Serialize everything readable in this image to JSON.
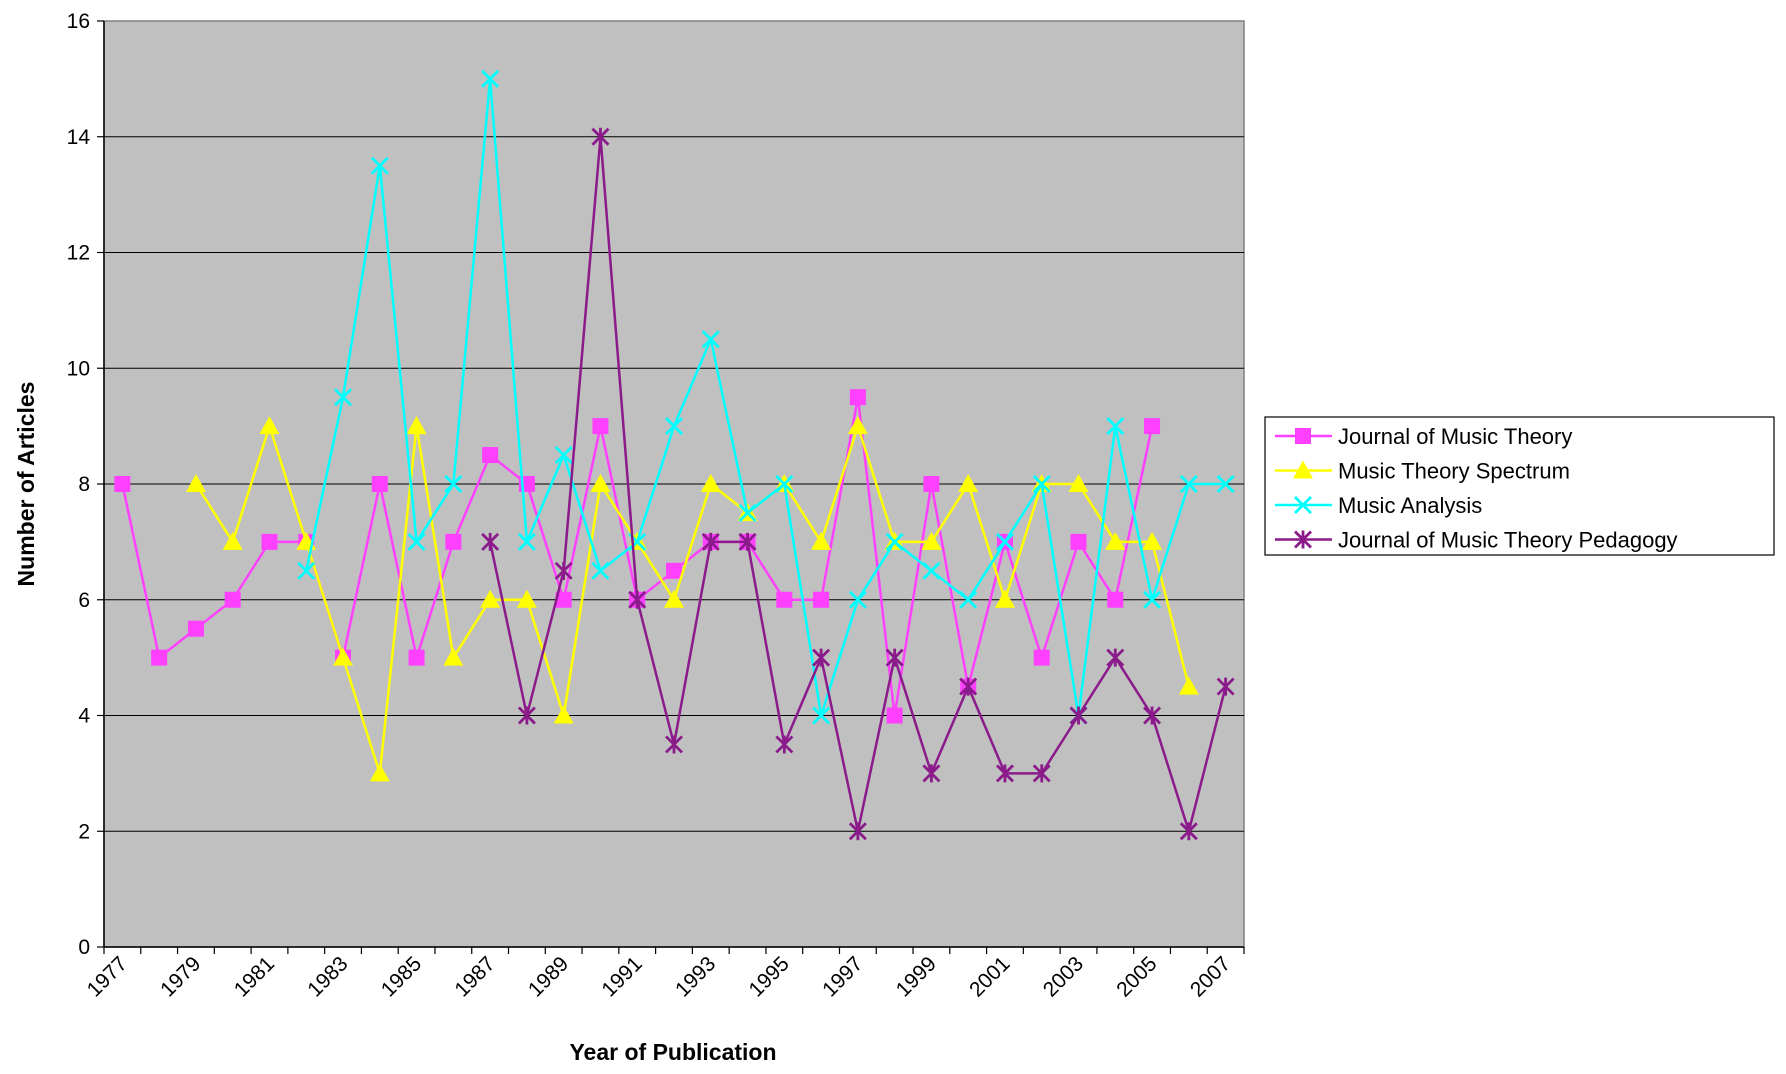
{
  "chart_data": {
    "type": "line",
    "xlabel": "Year of Publication",
    "ylabel": "Number of Articles",
    "ylim": [
      0,
      16
    ],
    "yticks": [
      "0",
      "2",
      "4",
      "6",
      "8",
      "10",
      "12",
      "14",
      "16"
    ],
    "xticks": [
      "1977",
      "1979",
      "1981",
      "1983",
      "1985",
      "1987",
      "1989",
      "1991",
      "1993",
      "1995",
      "1997",
      "1999",
      "2001",
      "2003",
      "2005",
      "2007"
    ],
    "plot_background": "#c0c0c0",
    "grid": "horizontal",
    "legend_position": "right",
    "series": [
      {
        "name": "Journal of Music Theory",
        "color": "#ff40ff",
        "marker": "square",
        "points": [
          [
            1977,
            8
          ],
          [
            1978,
            5
          ],
          [
            1979,
            5.5
          ],
          [
            1980,
            6
          ],
          [
            1981,
            7
          ],
          [
            1982,
            7
          ],
          [
            1983,
            5
          ],
          [
            1984,
            8
          ],
          [
            1985,
            5
          ],
          [
            1986,
            7
          ],
          [
            1987,
            8.5
          ],
          [
            1988,
            8
          ],
          [
            1989,
            6
          ],
          [
            1990,
            9
          ],
          [
            1991,
            6
          ],
          [
            1992,
            6.5
          ],
          [
            1993,
            7
          ],
          [
            1994,
            7
          ],
          [
            1995,
            6
          ],
          [
            1996,
            6
          ],
          [
            1997,
            9.5
          ],
          [
            1998,
            4
          ],
          [
            1999,
            8
          ],
          [
            2000,
            4.5
          ],
          [
            2001,
            7
          ],
          [
            2002,
            5
          ],
          [
            2003,
            7
          ],
          [
            2004,
            6
          ],
          [
            2005,
            9
          ]
        ]
      },
      {
        "name": "Music Theory Spectrum",
        "color": "#ffff00",
        "marker": "triangle",
        "points": [
          [
            1979,
            8
          ],
          [
            1980,
            7
          ],
          [
            1981,
            9
          ],
          [
            1982,
            7
          ],
          [
            1983,
            5
          ],
          [
            1984,
            3
          ],
          [
            1985,
            9
          ],
          [
            1986,
            5
          ],
          [
            1987,
            6
          ],
          [
            1988,
            6
          ],
          [
            1989,
            4
          ],
          [
            1990,
            8
          ],
          [
            1991,
            7
          ],
          [
            1992,
            6
          ],
          [
            1993,
            8
          ],
          [
            1994,
            7.5
          ],
          [
            1995,
            8
          ],
          [
            1996,
            7
          ],
          [
            1997,
            9
          ],
          [
            1998,
            7
          ],
          [
            1999,
            7
          ],
          [
            2000,
            8
          ],
          [
            2001,
            6
          ],
          [
            2002,
            8
          ],
          [
            2003,
            8
          ],
          [
            2004,
            7
          ],
          [
            2005,
            7
          ],
          [
            2006,
            4.5
          ]
        ]
      },
      {
        "name": "Music Analysis",
        "color": "#00ffff",
        "marker": "x",
        "points": [
          [
            1982,
            6.5
          ],
          [
            1983,
            9.5
          ],
          [
            1984,
            13.5
          ],
          [
            1985,
            7
          ],
          [
            1986,
            8
          ],
          [
            1987,
            15
          ],
          [
            1988,
            7
          ],
          [
            1989,
            8.5
          ],
          [
            1990,
            6.5
          ],
          [
            1991,
            7
          ],
          [
            1992,
            9
          ],
          [
            1993,
            10.5
          ],
          [
            1994,
            7.5
          ],
          [
            1995,
            8
          ],
          [
            1996,
            4
          ],
          [
            1997,
            6
          ],
          [
            1998,
            7
          ],
          [
            1999,
            6.5
          ],
          [
            2000,
            6
          ],
          [
            2001,
            7
          ],
          [
            2002,
            8
          ],
          [
            2003,
            4
          ],
          [
            2004,
            9
          ],
          [
            2005,
            6
          ],
          [
            2006,
            8
          ],
          [
            2007,
            8
          ]
        ]
      },
      {
        "name": "Journal of Music Theory Pedagogy",
        "color": "#8b1a8b",
        "marker": "star",
        "points": [
          [
            1987,
            7
          ],
          [
            1988,
            4
          ],
          [
            1989,
            6.5
          ],
          [
            1990,
            14
          ],
          [
            1991,
            6
          ],
          [
            1992,
            3.5
          ],
          [
            1993,
            7
          ],
          [
            1994,
            7
          ],
          [
            1995,
            3.5
          ],
          [
            1996,
            5
          ],
          [
            1997,
            2
          ],
          [
            1998,
            5
          ],
          [
            1999,
            3
          ],
          [
            2000,
            4.5
          ],
          [
            2001,
            3
          ],
          [
            2002,
            3
          ],
          [
            2003,
            4
          ],
          [
            2004,
            5
          ],
          [
            2005,
            4
          ],
          [
            2006,
            2
          ],
          [
            2007,
            4.5
          ]
        ]
      }
    ]
  }
}
